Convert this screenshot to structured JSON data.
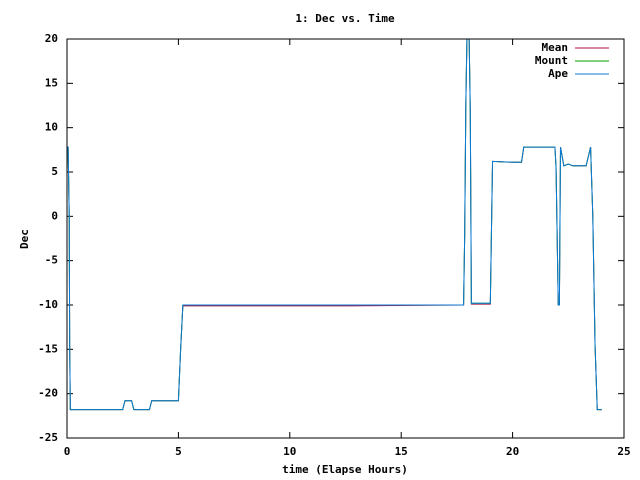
{
  "chart_data": {
    "type": "line",
    "title": "1: Dec vs. Time",
    "xlabel": "time (Elapse Hours)",
    "ylabel": "Dec",
    "xlim": [
      0,
      25
    ],
    "ylim": [
      -25,
      20
    ],
    "xticks": [
      0,
      5,
      10,
      15,
      20,
      25
    ],
    "yticks": [
      -25,
      -20,
      -15,
      -10,
      -5,
      0,
      5,
      10,
      15,
      20
    ],
    "grid": false,
    "legend": "top-right",
    "x": [
      0,
      0.05,
      0.1,
      0.12,
      0.15,
      2.5,
      2.6,
      2.9,
      3.0,
      3.7,
      3.8,
      5.0,
      5.1,
      5.2,
      12.7,
      17.8,
      17.85,
      17.9,
      17.95,
      18.05,
      18.1,
      18.15,
      19.0,
      19.1,
      20.0,
      20.4,
      20.5,
      21.9,
      21.95,
      22.05,
      22.1,
      22.15,
      22.3,
      22.5,
      22.7,
      23.3,
      23.5,
      23.6,
      23.7,
      23.8,
      24.0
    ],
    "series": [
      {
        "name": "Mean",
        "color": "#b0103a",
        "values": [
          7.8,
          7.8,
          0,
          -14.5,
          -21.8,
          -21.8,
          -20.8,
          -20.8,
          -21.8,
          -21.8,
          -20.8,
          -20.8,
          -15,
          -10.1,
          -10.1,
          -10,
          -2,
          12.5,
          20,
          20,
          12,
          -9.9,
          -9.9,
          6.2,
          6.1,
          6.1,
          7.8,
          7.8,
          5.5,
          -10,
          -10,
          7.8,
          5.7,
          5.9,
          5.7,
          5.7,
          7.8,
          0,
          -14.5,
          -21.8,
          -21.8
        ]
      },
      {
        "name": "Mount",
        "color": "#00a000",
        "values": [
          7.8,
          7.8,
          0,
          -14.5,
          -21.8,
          -21.8,
          -20.8,
          -20.8,
          -21.8,
          -21.8,
          -20.8,
          -20.8,
          -15,
          -10,
          -10,
          -10,
          -2,
          12.5,
          20,
          20,
          12,
          -9.8,
          -9.8,
          6.2,
          6.1,
          6.1,
          7.8,
          7.8,
          5.5,
          -10,
          -10,
          7.8,
          5.7,
          5.9,
          5.7,
          5.7,
          7.8,
          0,
          -14.5,
          -21.8,
          -21.8
        ]
      },
      {
        "name": "Ape",
        "color": "#0a7ad8",
        "values": [
          7.8,
          7.8,
          0,
          -14.5,
          -21.8,
          -21.8,
          -20.8,
          -20.8,
          -21.8,
          -21.8,
          -20.8,
          -20.8,
          -15,
          -10,
          -10,
          -10,
          -2,
          12.5,
          20,
          20,
          12,
          -9.8,
          -9.8,
          6.2,
          6.1,
          6.1,
          7.8,
          7.8,
          5.5,
          -10,
          -10,
          7.8,
          5.7,
          5.9,
          5.7,
          5.7,
          7.8,
          0,
          -14.5,
          -21.8,
          -21.8
        ]
      }
    ]
  }
}
